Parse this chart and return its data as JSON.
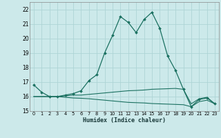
{
  "xlabel": "Humidex (Indice chaleur)",
  "bg_color": "#cce9ea",
  "grid_color": "#aed4d5",
  "line_color": "#1a7060",
  "xlim": [
    -0.5,
    23.5
  ],
  "ylim": [
    15,
    22.5
  ],
  "yticks": [
    15,
    16,
    17,
    18,
    19,
    20,
    21,
    22
  ],
  "xticks": [
    0,
    1,
    2,
    3,
    4,
    5,
    6,
    7,
    8,
    9,
    10,
    11,
    12,
    13,
    14,
    15,
    16,
    17,
    18,
    19,
    20,
    21,
    22,
    23
  ],
  "main_line": [
    16.8,
    16.3,
    16.0,
    16.0,
    16.1,
    16.2,
    16.4,
    17.1,
    17.5,
    19.0,
    20.2,
    21.5,
    21.1,
    20.4,
    21.3,
    21.8,
    20.7,
    18.8,
    17.8,
    16.5,
    15.3,
    15.8,
    15.9,
    15.5
  ],
  "flat_line1": [
    16.0,
    16.0,
    16.0,
    16.0,
    16.05,
    16.1,
    16.1,
    16.15,
    16.2,
    16.25,
    16.3,
    16.35,
    16.4,
    16.42,
    16.45,
    16.5,
    16.52,
    16.54,
    16.56,
    16.5,
    15.5,
    15.85,
    15.95,
    15.5
  ],
  "flat_line2": [
    16.0,
    16.0,
    16.0,
    16.0,
    15.95,
    15.9,
    15.88,
    15.85,
    15.8,
    15.75,
    15.7,
    15.65,
    15.6,
    15.58,
    15.56,
    15.52,
    15.5,
    15.48,
    15.46,
    15.44,
    15.3,
    15.65,
    15.75,
    15.5
  ]
}
